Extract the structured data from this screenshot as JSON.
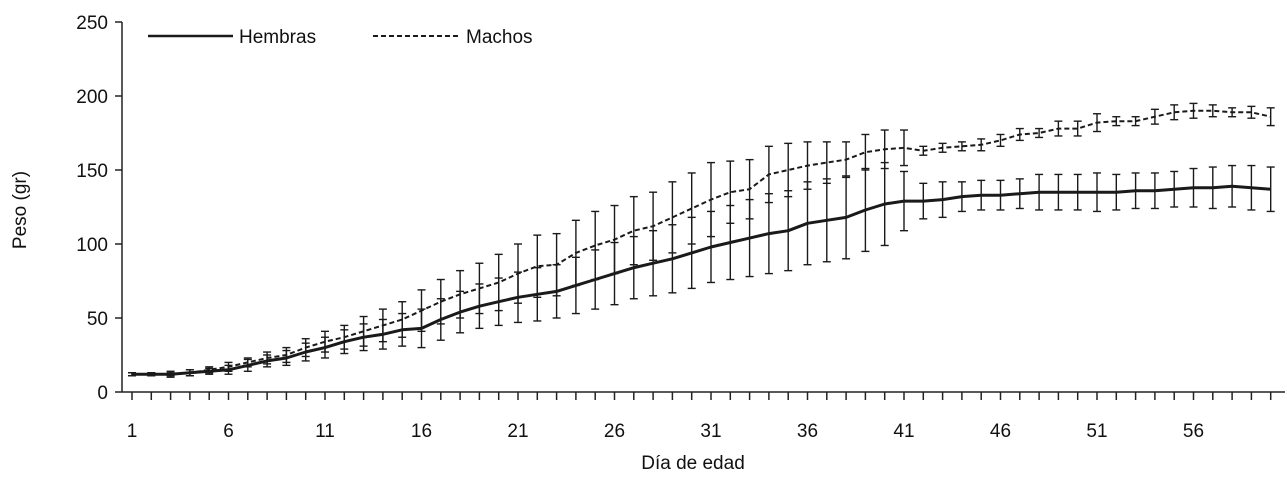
{
  "chart_data": {
    "type": "line",
    "title": "",
    "xlabel": "Día de edad",
    "ylabel": "Peso (gr)",
    "xlim": [
      1,
      60
    ],
    "ylim": [
      0,
      250
    ],
    "x_ticks": [
      1,
      6,
      11,
      16,
      21,
      26,
      31,
      36,
      41,
      46,
      51,
      56
    ],
    "y_ticks": [
      0,
      50,
      100,
      150,
      200,
      250
    ],
    "grid": false,
    "legend": "top-left",
    "series": [
      {
        "name": "Hembras",
        "style": "solid",
        "color": "#1a1a1a",
        "x": [
          1,
          2,
          3,
          4,
          5,
          6,
          7,
          8,
          9,
          10,
          11,
          12,
          13,
          14,
          15,
          16,
          17,
          18,
          19,
          20,
          21,
          22,
          23,
          24,
          25,
          26,
          27,
          28,
          29,
          30,
          31,
          32,
          33,
          34,
          35,
          36,
          37,
          38,
          39,
          40,
          41,
          42,
          43,
          44,
          45,
          46,
          47,
          48,
          49,
          50,
          51,
          52,
          53,
          54,
          55,
          56,
          57,
          58,
          59,
          60
        ],
        "values": [
          12,
          12,
          12,
          13,
          14,
          15,
          18,
          21,
          23,
          27,
          30,
          34,
          37,
          39,
          42,
          43,
          49,
          54,
          58,
          61,
          64,
          66,
          68,
          72,
          76,
          80,
          84,
          87,
          90,
          94,
          98,
          101,
          104,
          107,
          109,
          114,
          116,
          118,
          123,
          127,
          129,
          129,
          130,
          132,
          133,
          133,
          134,
          135,
          135,
          135,
          135,
          135,
          136,
          136,
          137,
          138,
          138,
          139,
          138,
          137
        ],
        "error": [
          1,
          1,
          1,
          2,
          2,
          3,
          4,
          4,
          5,
          6,
          7,
          8,
          9,
          10,
          11,
          13,
          14,
          14,
          15,
          16,
          17,
          18,
          18,
          19,
          20,
          21,
          21,
          22,
          23,
          24,
          24,
          25,
          26,
          27,
          27,
          28,
          28,
          28,
          28,
          28,
          20,
          12,
          12,
          10,
          10,
          10,
          10,
          12,
          12,
          12,
          13,
          12,
          12,
          12,
          12,
          13,
          14,
          14,
          15,
          15
        ]
      },
      {
        "name": "Machos",
        "style": "dashed",
        "color": "#1a1a1a",
        "x": [
          1,
          2,
          3,
          4,
          5,
          6,
          7,
          8,
          9,
          10,
          11,
          12,
          13,
          14,
          15,
          16,
          17,
          18,
          19,
          20,
          21,
          22,
          23,
          24,
          25,
          26,
          27,
          28,
          29,
          30,
          31,
          32,
          33,
          34,
          35,
          36,
          37,
          38,
          39,
          40,
          41,
          42,
          43,
          44,
          45,
          46,
          47,
          48,
          49,
          50,
          51,
          52,
          53,
          54,
          55,
          56,
          57,
          58,
          59,
          60
        ],
        "values": [
          12,
          12,
          12,
          13,
          15,
          17,
          20,
          23,
          25,
          30,
          34,
          37,
          41,
          45,
          49,
          55,
          61,
          66,
          70,
          74,
          80,
          85,
          86,
          94,
          99,
          103,
          109,
          112,
          118,
          124,
          130,
          135,
          137,
          147,
          150,
          153,
          155,
          157,
          162,
          164,
          165,
          163,
          165,
          166,
          167,
          170,
          174,
          175,
          178,
          178,
          182,
          183,
          183,
          186,
          189,
          190,
          190,
          189,
          189,
          186
        ],
        "error": [
          1,
          1,
          2,
          2,
          2,
          3,
          3,
          4,
          5,
          6,
          7,
          8,
          10,
          11,
          12,
          14,
          15,
          16,
          17,
          19,
          20,
          21,
          21,
          22,
          23,
          23,
          23,
          23,
          24,
          24,
          25,
          21,
          20,
          19,
          18,
          16,
          14,
          12,
          12,
          13,
          12,
          3,
          3,
          3,
          4,
          4,
          4,
          3,
          5,
          5,
          6,
          3,
          3,
          5,
          5,
          5,
          4,
          3,
          4,
          6
        ]
      }
    ]
  }
}
